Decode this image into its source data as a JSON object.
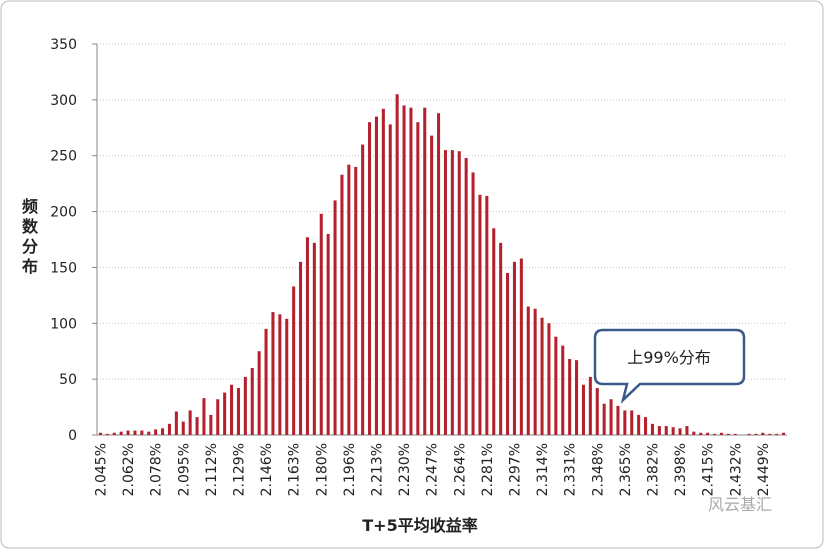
{
  "chart_data": {
    "type": "bar",
    "x_label": "T+5平均收益率",
    "y_label": "频数分布",
    "annotation": "上99%分布",
    "watermark": "风云基汇",
    "color": "#b5202e",
    "grid": true,
    "ylim": [
      0,
      350
    ],
    "yticks": [
      0,
      50,
      100,
      150,
      200,
      250,
      300,
      350
    ],
    "categories": [
      "2.045%",
      null,
      null,
      null,
      "2.062%",
      null,
      null,
      null,
      "2.078%",
      null,
      null,
      null,
      "2.095%",
      null,
      null,
      null,
      "2.112%",
      null,
      null,
      null,
      "2.129%",
      null,
      null,
      null,
      "2.146%",
      null,
      null,
      null,
      "2.163%",
      null,
      null,
      null,
      "2.180%",
      null,
      null,
      null,
      "2.196%",
      null,
      null,
      null,
      "2.213%",
      null,
      null,
      null,
      "2.230%",
      null,
      null,
      null,
      "2.247%",
      null,
      null,
      null,
      "2.264%",
      null,
      null,
      null,
      "2.281%",
      null,
      null,
      null,
      "2.297%",
      null,
      null,
      null,
      "2.314%",
      null,
      null,
      null,
      "2.331%",
      null,
      null,
      null,
      "2.348%",
      null,
      null,
      null,
      "2.365%",
      null,
      null,
      null,
      "2.382%",
      null,
      null,
      null,
      "2.398%",
      null,
      null,
      null,
      "2.415%",
      null,
      null,
      null,
      "2.432%",
      null,
      null,
      null,
      "2.449%",
      null,
      null,
      null
    ],
    "values": [
      2,
      1,
      2,
      3,
      4,
      4,
      4,
      3,
      5,
      6,
      10,
      21,
      12,
      22,
      16,
      33,
      18,
      32,
      38,
      45,
      42,
      52,
      60,
      75,
      95,
      110,
      108,
      104,
      133,
      155,
      177,
      172,
      198,
      180,
      210,
      233,
      242,
      240,
      260,
      280,
      285,
      292,
      278,
      305,
      295,
      293,
      280,
      293,
      268,
      288,
      255,
      255,
      254,
      248,
      235,
      215,
      214,
      185,
      172,
      145,
      155,
      158,
      115,
      113,
      105,
      100,
      88,
      80,
      68,
      67,
      45,
      52,
      42,
      28,
      32,
      26,
      22,
      22,
      18,
      16,
      10,
      8,
      8,
      7,
      6,
      8,
      3,
      2,
      2,
      1,
      2,
      1,
      1,
      0,
      1,
      1,
      2,
      1,
      1,
      2
    ]
  }
}
